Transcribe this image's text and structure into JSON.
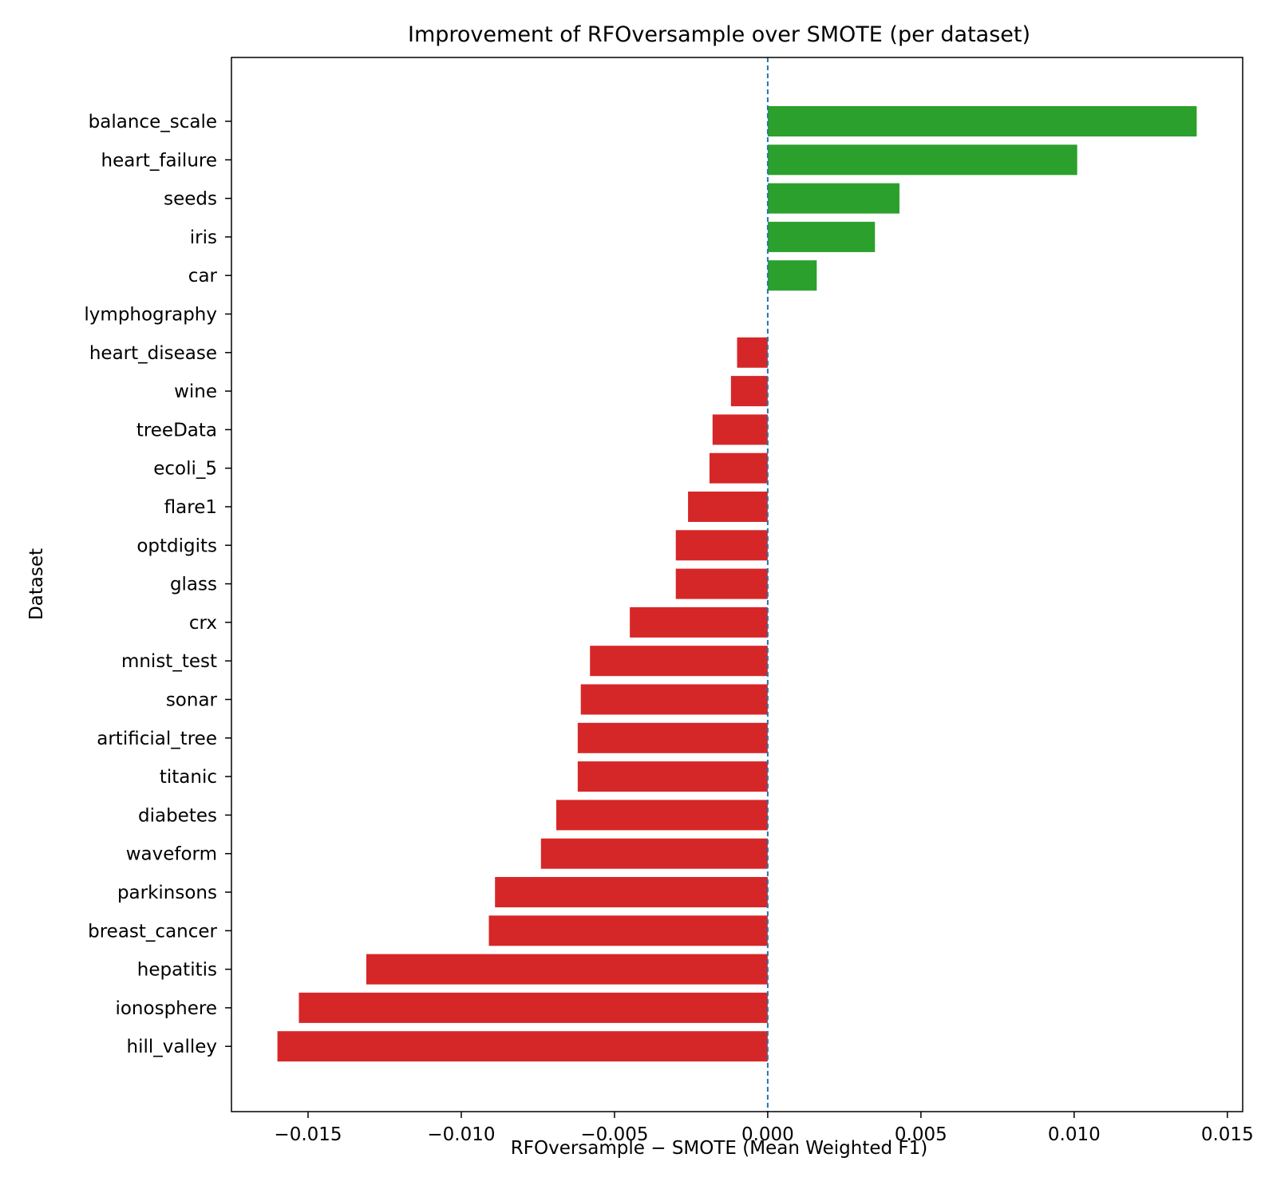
{
  "chart_data": {
    "type": "bar",
    "orientation": "horizontal",
    "title": "Improvement of RFOversample over SMOTE (per dataset)",
    "xlabel": "RFOversample − SMOTE (Mean Weighted F1)",
    "ylabel": "Dataset",
    "xlim": [
      -0.0175,
      0.0155
    ],
    "x_ticks": [
      -0.015,
      -0.01,
      -0.005,
      0.0,
      0.005,
      0.01,
      0.015
    ],
    "x_tick_labels": [
      "−0.015",
      "−0.010",
      "−0.005",
      "0.000",
      "0.005",
      "0.010",
      "0.015"
    ],
    "reference_line": {
      "x": 0,
      "style": "dashed",
      "color": "#1f77b4"
    },
    "colors": {
      "positive": "#2ca02c",
      "negative": "#d62728"
    },
    "grid": false,
    "categories": [
      "balance_scale",
      "heart_failure",
      "seeds",
      "iris",
      "car",
      "lymphography",
      "heart_disease",
      "wine",
      "treeData",
      "ecoli_5",
      "flare1",
      "optdigits",
      "glass",
      "crx",
      "mnist_test",
      "sonar",
      "artificial_tree",
      "titanic",
      "diabetes",
      "waveform",
      "parkinsons",
      "breast_cancer",
      "hepatitis",
      "ionosphere",
      "hill_valley"
    ],
    "values": [
      0.014,
      0.0101,
      0.0043,
      0.0035,
      0.0016,
      0.0,
      -0.001,
      -0.0012,
      -0.0018,
      -0.0019,
      -0.0026,
      -0.003,
      -0.003,
      -0.0045,
      -0.0058,
      -0.0061,
      -0.0062,
      -0.0062,
      -0.0069,
      -0.0074,
      -0.0089,
      -0.0091,
      -0.0131,
      -0.0153,
      -0.016
    ]
  }
}
